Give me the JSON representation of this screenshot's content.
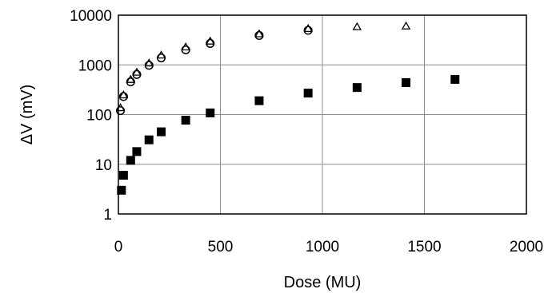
{
  "chart_data": {
    "type": "scatter",
    "xlabel": "Dose  (MU)",
    "ylabel": "ΔV (mV)",
    "x_ticks": [
      "0",
      "500",
      "1000",
      "1500",
      "2000"
    ],
    "y_ticks": [
      "1",
      "10",
      "100",
      "1000",
      "10000"
    ],
    "xlim": [
      0,
      2000
    ],
    "ylim": [
      1,
      10000
    ],
    "y_scale": "log",
    "grid": true,
    "series": [
      {
        "marker": "triangle-open",
        "color": "#000000",
        "points": [
          [
            10,
            135
          ],
          [
            25,
            245
          ],
          [
            60,
            500
          ],
          [
            90,
            700
          ],
          [
            150,
            1070
          ],
          [
            210,
            1550
          ],
          [
            330,
            2250
          ],
          [
            450,
            2950
          ],
          [
            690,
            4150
          ],
          [
            930,
            5300
          ],
          [
            1170,
            5750
          ],
          [
            1410,
            5950
          ]
        ]
      },
      {
        "marker": "circle-open",
        "color": "#000000",
        "points": [
          [
            10,
            120
          ],
          [
            25,
            230
          ],
          [
            60,
            455
          ],
          [
            90,
            640
          ],
          [
            150,
            980
          ],
          [
            210,
            1380
          ],
          [
            330,
            2000
          ],
          [
            450,
            2700
          ],
          [
            690,
            3900
          ],
          [
            930,
            4950
          ]
        ]
      },
      {
        "marker": "square-filled",
        "color": "#000000",
        "points": [
          [
            15,
            3
          ],
          [
            25,
            6
          ],
          [
            60,
            12
          ],
          [
            90,
            18
          ],
          [
            150,
            31
          ],
          [
            210,
            45
          ],
          [
            330,
            77
          ],
          [
            450,
            108
          ],
          [
            690,
            190
          ],
          [
            930,
            270
          ],
          [
            1170,
            350
          ],
          [
            1410,
            440
          ],
          [
            1650,
            510
          ]
        ]
      }
    ]
  }
}
